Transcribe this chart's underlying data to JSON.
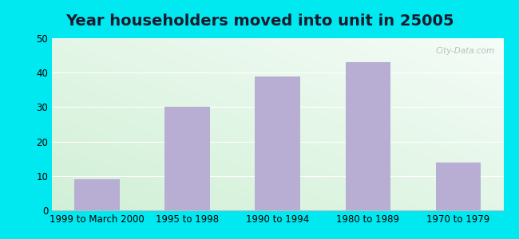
{
  "title": "Year householders moved into unit in 25005",
  "categories": [
    "1999 to March 2000",
    "1995 to 1998",
    "1990 to 1994",
    "1980 to 1989",
    "1970 to 1979"
  ],
  "values": [
    9,
    30,
    39,
    43,
    14
  ],
  "bar_color": "#b8aed4",
  "ylim": [
    0,
    50
  ],
  "yticks": [
    0,
    10,
    20,
    30,
    40,
    50
  ],
  "background_outer": "#00e8f0",
  "title_fontsize": 14,
  "tick_fontsize": 8.5,
  "watermark": "City-Data.com",
  "bg_color_topleft": [
    0.82,
    0.94,
    0.84
  ],
  "bg_color_bottomright": [
    0.96,
    0.99,
    0.97
  ]
}
